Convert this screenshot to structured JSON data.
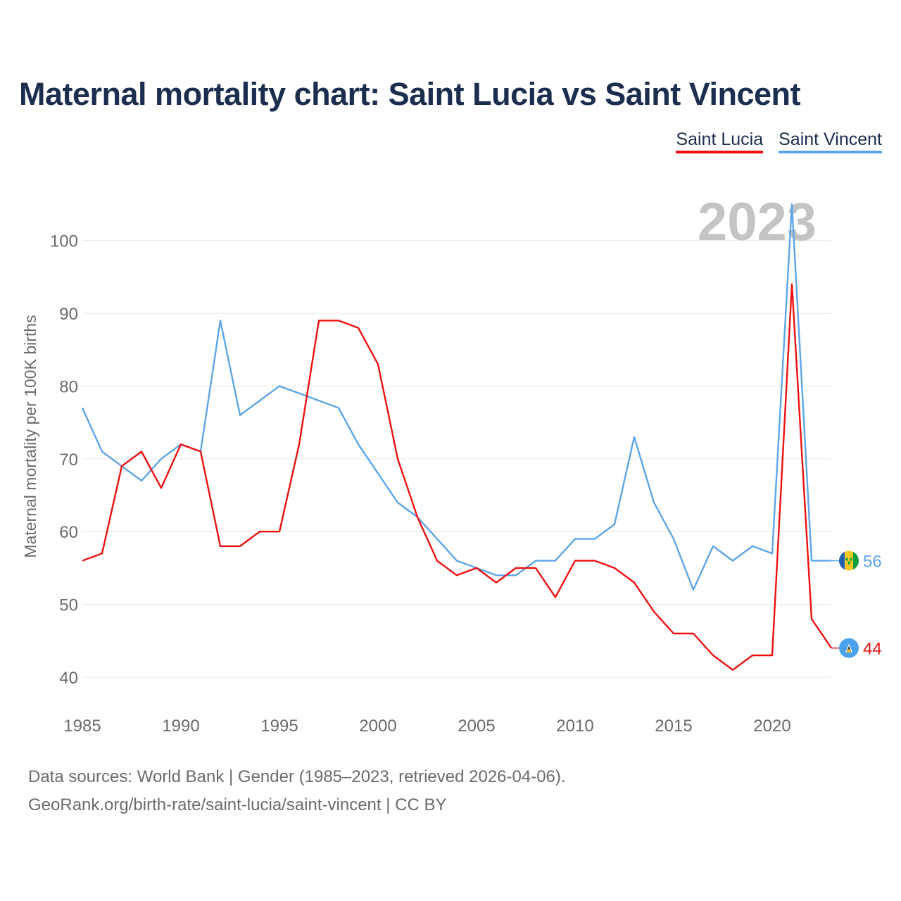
{
  "chart_data": {
    "type": "line",
    "title": "Maternal mortality chart: Saint Lucia vs Saint Vincent",
    "xlabel": "",
    "ylabel": "Maternal mortality per 100K births",
    "xlim": [
      1985,
      2023
    ],
    "ylim": [
      40,
      105
    ],
    "yticks": [
      40,
      50,
      60,
      70,
      80,
      90,
      100
    ],
    "ytick_labels": [
      "40",
      "50",
      "60",
      "70",
      "80",
      "90",
      "100"
    ],
    "xticks": [
      1985,
      1990,
      1995,
      2000,
      2005,
      2010,
      2015,
      2020
    ],
    "xtick_labels": [
      "1985",
      "1990",
      "1995",
      "2000",
      "2005",
      "2010",
      "2015",
      "2020"
    ],
    "year_label": "2023",
    "legend_position": "top-right",
    "grid": true,
    "x": [
      1985,
      1986,
      1987,
      1988,
      1989,
      1990,
      1991,
      1992,
      1993,
      1994,
      1995,
      1996,
      1997,
      1998,
      1999,
      2000,
      2001,
      2002,
      2003,
      2004,
      2005,
      2006,
      2007,
      2008,
      2009,
      2010,
      2011,
      2012,
      2013,
      2014,
      2015,
      2016,
      2017,
      2018,
      2019,
      2020,
      2021,
      2022,
      2023
    ],
    "series": [
      {
        "name": "Saint Lucia",
        "color": "#ee1111",
        "end_label": "44",
        "values": [
          56,
          57,
          69,
          71,
          66,
          72,
          71,
          58,
          58,
          60,
          60,
          72,
          89,
          89,
          88,
          83,
          70,
          62,
          56,
          54,
          55,
          53,
          55,
          55,
          51,
          56,
          56,
          55,
          53,
          49,
          46,
          46,
          43,
          41,
          43,
          43,
          94,
          48,
          44
        ]
      },
      {
        "name": "Saint Vincent",
        "color": "#5ea5e5",
        "end_label": "56",
        "values": [
          77,
          71,
          69,
          67,
          70,
          72,
          71,
          89,
          76,
          78,
          80,
          79,
          78,
          77,
          72,
          68,
          64,
          62,
          59,
          56,
          55,
          54,
          54,
          56,
          56,
          59,
          59,
          61,
          73,
          64,
          59,
          52,
          58,
          56,
          58,
          57,
          105,
          56,
          56
        ]
      }
    ]
  },
  "footer": {
    "line1": "Data sources: World Bank | Gender (1985–2023, retrieved 2026-04-06).",
    "line2": "GeoRank.org/birth-rate/saint-lucia/saint-vincent | CC BY"
  }
}
